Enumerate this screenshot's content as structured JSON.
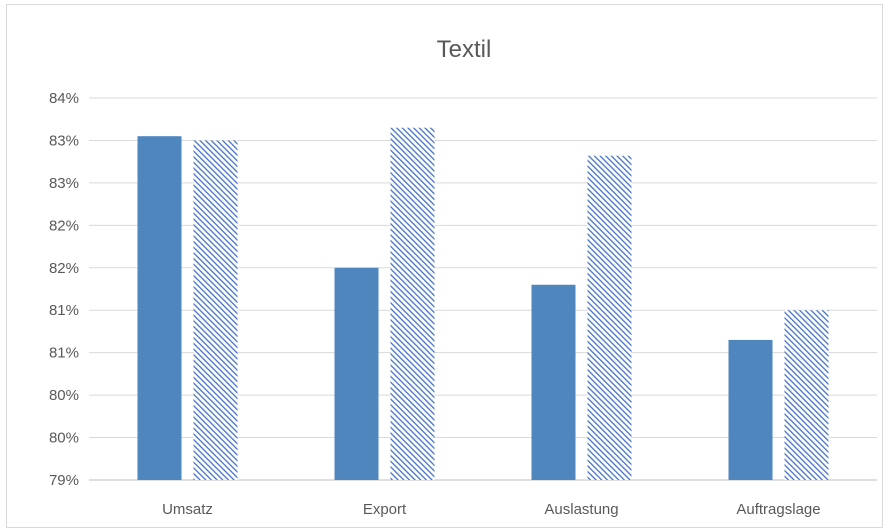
{
  "chart_data": {
    "type": "bar",
    "title": "Textil",
    "categories": [
      "Umsatz",
      "Export",
      "Auslastung",
      "Auftragslage"
    ],
    "series": [
      {
        "values": [
          83.05,
          81.5,
          81.3,
          80.65
        ],
        "color": "#4f86be",
        "fill": "solid"
      },
      {
        "values": [
          83.0,
          83.15,
          82.82,
          81.0
        ],
        "color": "#4472c4",
        "fill": "diagonal-hatch"
      }
    ],
    "y_ticks": [
      "79%",
      "80%",
      "80%",
      "81%",
      "81%",
      "82%",
      "82%",
      "83%",
      "83%",
      "84%"
    ],
    "ylim": [
      79,
      83.5
    ],
    "xlabel": "",
    "ylabel": "",
    "grid": true,
    "legend": "none"
  }
}
